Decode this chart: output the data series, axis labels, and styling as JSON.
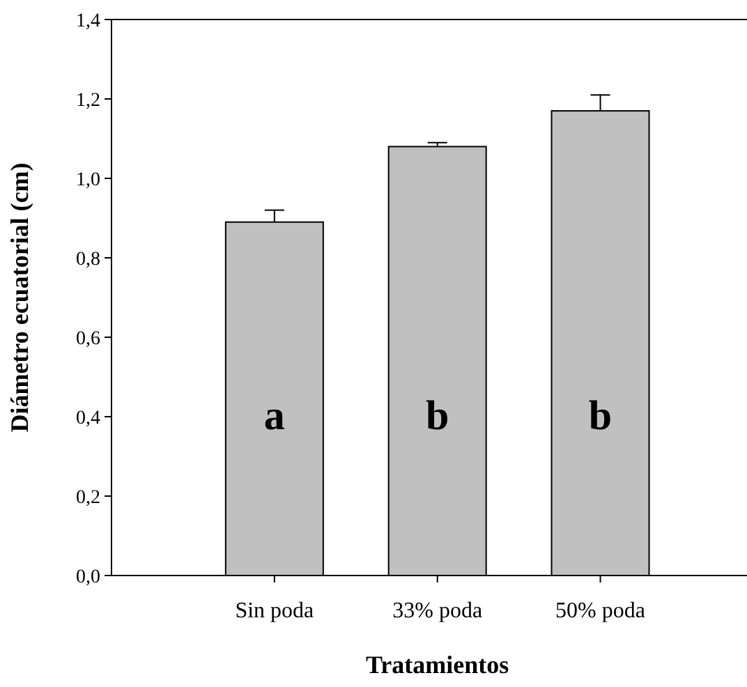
{
  "chart_data": {
    "type": "bar",
    "xlabel": "Tratamientos",
    "ylabel": "Diámetro ecuatorial (cm)",
    "categories": [
      "Sin poda",
      "33% poda",
      "50% poda"
    ],
    "values": [
      0.89,
      1.08,
      1.17
    ],
    "errors": [
      0.03,
      0.01,
      0.04
    ],
    "color": "#c0c0c0",
    "ylim": [
      0,
      1.4
    ],
    "yticks": [
      {
        "value": 0,
        "label": "0,0"
      },
      {
        "value": 0.2,
        "label": "0,2"
      },
      {
        "value": 0.4,
        "label": "0,4"
      },
      {
        "value": 0.6,
        "label": "0,6"
      },
      {
        "value": 0.8,
        "label": "0,8"
      },
      {
        "value": 1,
        "label": "1,0"
      },
      {
        "value": 1.2,
        "label": "1,2"
      },
      {
        "value": 1.4,
        "label": "1,4"
      }
    ],
    "annotations": [
      "a",
      "b",
      "b"
    ],
    "grid": false
  }
}
